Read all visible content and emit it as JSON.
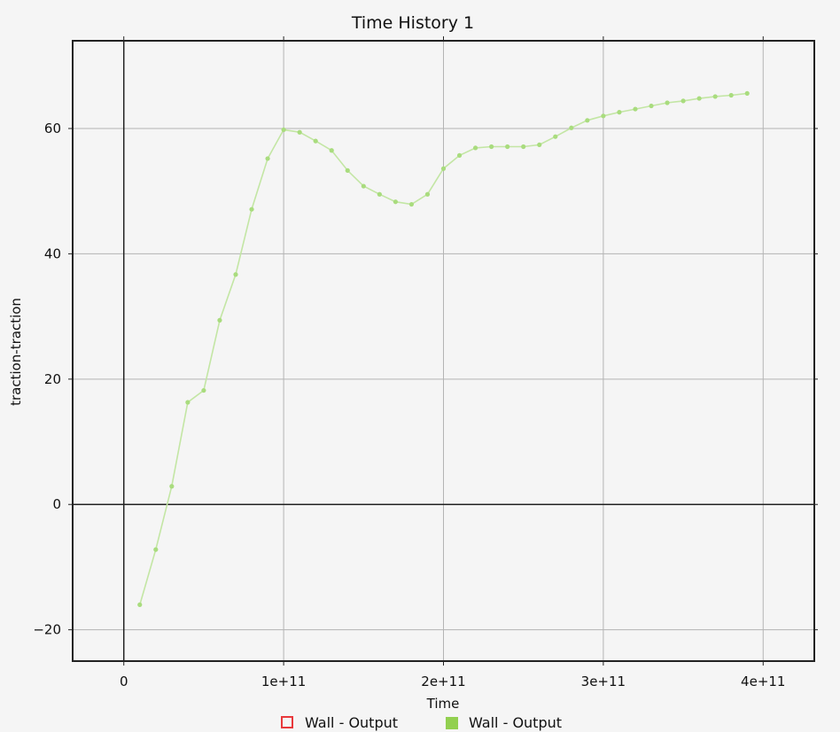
{
  "chart_data": {
    "type": "line",
    "title": "Time History 1",
    "xlabel": "Time",
    "ylabel": "traction-traction",
    "xlim": [
      -32000000000,
      432000000000
    ],
    "ylim": [
      -25,
      74
    ],
    "x_ticks": [
      0,
      100000000000,
      200000000000,
      300000000000,
      400000000000
    ],
    "x_tick_labels": [
      "0",
      "1e+11",
      "2e+11",
      "3e+11",
      "4e+11"
    ],
    "y_ticks": [
      -20,
      0,
      20,
      40,
      60
    ],
    "y_tick_labels": [
      "−20",
      "0",
      "20",
      "40",
      "60"
    ],
    "grid": true,
    "legend_position": "bottom-center",
    "legend": [
      {
        "label": "Wall - Output",
        "marker": "hollow-square",
        "color": "#e8383b"
      },
      {
        "label": "Wall - Output",
        "marker": "filled-square",
        "color": "#92d050"
      }
    ],
    "series": [
      {
        "name": "Wall - Output",
        "color": "#e8383b",
        "x": [],
        "y": []
      },
      {
        "name": "Wall - Output",
        "color": "#92d050",
        "x": [
          10000000000,
          20000000000,
          30000000000,
          40000000000,
          50000000000,
          60000000000,
          70000000000,
          80000000000,
          90000000000,
          100000000000,
          110000000000,
          120000000000,
          130000000000,
          140000000000,
          150000000000,
          160000000000,
          170000000000,
          180000000000,
          190000000000,
          200000000000,
          210000000000,
          220000000000,
          230000000000,
          240000000000,
          250000000000,
          260000000000,
          270000000000,
          280000000000,
          290000000000,
          300000000000,
          310000000000,
          320000000000,
          330000000000,
          340000000000,
          350000000000,
          360000000000,
          370000000000,
          380000000000,
          390000000000
        ],
        "y": [
          -16.0,
          -7.2,
          2.9,
          16.3,
          18.2,
          29.4,
          36.7,
          47.1,
          55.2,
          59.8,
          59.4,
          58.0,
          56.5,
          53.3,
          50.8,
          49.5,
          48.3,
          47.9,
          49.5,
          53.6,
          55.7,
          56.9,
          57.1,
          57.1,
          57.1,
          57.4,
          58.7,
          60.1,
          61.3,
          62.0,
          62.6,
          63.1,
          63.6,
          64.1,
          64.4,
          64.8,
          65.1,
          65.3,
          65.6
        ]
      }
    ]
  }
}
